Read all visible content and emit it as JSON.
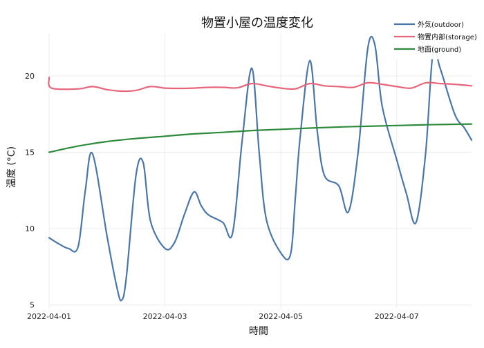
{
  "chart_data": {
    "type": "line",
    "title": "物置小屋の温度変化",
    "xlabel": "時間",
    "ylabel": "温度 (°C)",
    "x_range": [
      "2022-04-01",
      "2022-04-08 07:00"
    ],
    "ylim": [
      4.8,
      22.8
    ],
    "x_tick_labels": [
      "2022-04-01",
      "2022-04-03",
      "2022-04-05",
      "2022-04-07"
    ],
    "y_tick_labels": [
      "5",
      "10",
      "15",
      "20"
    ],
    "grid": true,
    "legend_position": "top-right",
    "series": [
      {
        "name": "外気(outdoor)",
        "color": "#4a76a8",
        "x": [
          "2022-04-01 00:00",
          "2022-04-01 04:00",
          "2022-04-01 08:00",
          "2022-04-01 12:00",
          "2022-04-01 15:00",
          "2022-04-01 18:00",
          "2022-04-02 00:00",
          "2022-04-02 04:00",
          "2022-04-02 06:00",
          "2022-04-02 08:00",
          "2022-04-02 12:00",
          "2022-04-02 15:00",
          "2022-04-02 18:00",
          "2022-04-03 00:00",
          "2022-04-03 04:00",
          "2022-04-03 08:00",
          "2022-04-03 12:00",
          "2022-04-03 15:00",
          "2022-04-03 18:00",
          "2022-04-04 00:00",
          "2022-04-04 04:00",
          "2022-04-04 08:00",
          "2022-04-04 12:00",
          "2022-04-04 15:00",
          "2022-04-04 18:00",
          "2022-04-05 00:00",
          "2022-04-05 04:00",
          "2022-04-05 06:00",
          "2022-04-05 08:00",
          "2022-04-05 12:00",
          "2022-04-05 15:00",
          "2022-04-05 18:00",
          "2022-04-06 00:00",
          "2022-04-06 04:00",
          "2022-04-06 08:00",
          "2022-04-06 12:00",
          "2022-04-06 15:00",
          "2022-04-06 18:00",
          "2022-04-07 00:00",
          "2022-04-07 04:00",
          "2022-04-07 08:00",
          "2022-04-07 12:00",
          "2022-04-07 15:00",
          "2022-04-07 18:00",
          "2022-04-08 00:00",
          "2022-04-08 04:00",
          "2022-04-08 07:00"
        ],
        "values": [
          9.4,
          9.0,
          8.7,
          8.8,
          12.5,
          14.9,
          9.5,
          6.2,
          5.3,
          6.8,
          13.5,
          14.3,
          10.5,
          8.7,
          9.1,
          10.9,
          12.4,
          11.5,
          10.9,
          10.4,
          9.7,
          15.8,
          20.5,
          15.0,
          10.6,
          8.4,
          8.3,
          12.0,
          16.0,
          21.0,
          16.5,
          13.5,
          12.8,
          11.1,
          15.0,
          21.8,
          22.0,
          18.0,
          14.5,
          12.3,
          10.4,
          15.0,
          21.5,
          20.5,
          17.5,
          16.6,
          15.8
        ]
      },
      {
        "name": "物置内部(storage)",
        "color": "#e8647a",
        "x": [
          "2022-04-01 00:00",
          "2022-04-01 01:00",
          "2022-04-01 12:00",
          "2022-04-01 18:00",
          "2022-04-02 00:00",
          "2022-04-02 06:00",
          "2022-04-02 12:00",
          "2022-04-02 18:00",
          "2022-04-03 00:00",
          "2022-04-03 06:00",
          "2022-04-03 12:00",
          "2022-04-03 18:00",
          "2022-04-04 00:00",
          "2022-04-04 06:00",
          "2022-04-04 12:00",
          "2022-04-04 18:00",
          "2022-04-05 00:00",
          "2022-04-05 06:00",
          "2022-04-05 12:00",
          "2022-04-05 18:00",
          "2022-04-06 00:00",
          "2022-04-06 06:00",
          "2022-04-06 12:00",
          "2022-04-06 18:00",
          "2022-04-07 00:00",
          "2022-04-07 06:00",
          "2022-04-07 12:00",
          "2022-04-07 18:00",
          "2022-04-08 00:00",
          "2022-04-08 07:00"
        ],
        "values": [
          19.9,
          19.2,
          19.15,
          19.3,
          19.1,
          19.0,
          19.05,
          19.3,
          19.2,
          19.18,
          19.2,
          19.25,
          19.25,
          19.22,
          19.5,
          19.35,
          19.2,
          19.15,
          19.5,
          19.35,
          19.3,
          19.25,
          19.55,
          19.45,
          19.3,
          19.2,
          19.55,
          19.5,
          19.45,
          19.35
        ]
      },
      {
        "name": "地面(ground)",
        "color": "#2c8a3a",
        "x": [
          "2022-04-01 00:00",
          "2022-04-01 12:00",
          "2022-04-02 00:00",
          "2022-04-02 12:00",
          "2022-04-03 00:00",
          "2022-04-03 12:00",
          "2022-04-04 00:00",
          "2022-04-04 12:00",
          "2022-04-05 00:00",
          "2022-04-05 12:00",
          "2022-04-06 00:00",
          "2022-04-06 12:00",
          "2022-04-07 00:00",
          "2022-04-07 12:00",
          "2022-04-08 00:00",
          "2022-04-08 07:00"
        ],
        "values": [
          15.0,
          15.4,
          15.7,
          15.9,
          16.05,
          16.2,
          16.3,
          16.42,
          16.5,
          16.58,
          16.65,
          16.7,
          16.75,
          16.8,
          16.83,
          16.85
        ]
      }
    ]
  }
}
